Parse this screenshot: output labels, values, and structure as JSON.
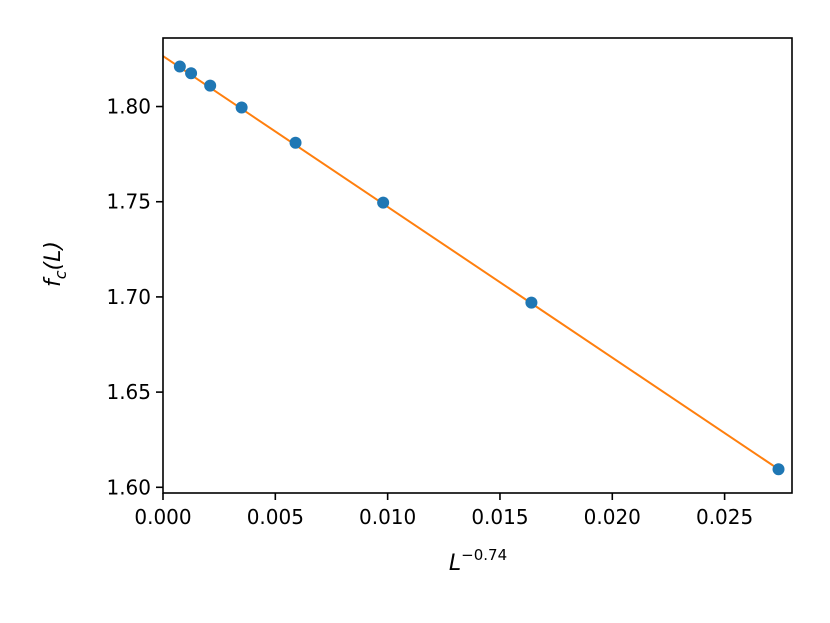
{
  "chart_data": {
    "type": "scatter",
    "title": "",
    "xlabel": {
      "base": "L",
      "exponent": "−0.74"
    },
    "ylabel": {
      "prefix": "f",
      "subscript": "c",
      "suffix": "(L)"
    },
    "xlim": [
      0.0,
      0.028
    ],
    "ylim": [
      1.597,
      1.836
    ],
    "xticks": [
      0.0,
      0.005,
      0.01,
      0.015,
      0.02,
      0.025
    ],
    "xtick_labels": [
      "0.000",
      "0.005",
      "0.010",
      "0.015",
      "0.020",
      "0.025"
    ],
    "yticks": [
      1.6,
      1.65,
      1.7,
      1.75,
      1.8
    ],
    "ytick_labels": [
      "1.60",
      "1.65",
      "1.70",
      "1.75",
      "1.80"
    ],
    "grid": false,
    "series": [
      {
        "kind": "points",
        "color": "#1f77b4",
        "x": [
          0.00075,
          0.00125,
          0.0021,
          0.0035,
          0.0059,
          0.0098,
          0.0164,
          0.0274
        ],
        "y": [
          1.821,
          1.8175,
          1.811,
          1.7995,
          1.781,
          1.7495,
          1.697,
          1.6095
        ]
      },
      {
        "kind": "line",
        "color": "#ff7f0e",
        "x": [
          0.0,
          0.0274
        ],
        "y": [
          1.8265,
          1.6095
        ]
      }
    ]
  }
}
